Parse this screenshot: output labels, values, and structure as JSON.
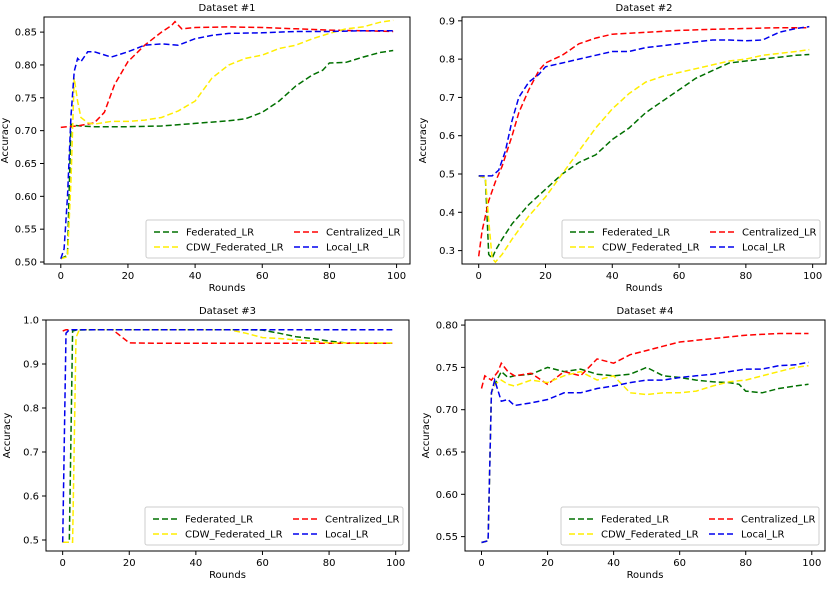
{
  "figure": {
    "series_names": [
      "Federated_LR",
      "Centralized_LR",
      "CDW_Federated_LR",
      "Local_LR"
    ],
    "series_colors": [
      "#007000",
      "#ff0000",
      "#ffee00",
      "#0000ee"
    ]
  },
  "chart_data": [
    {
      "type": "line",
      "title": "Dataset #1",
      "xlabel": "Rounds",
      "ylabel": "Accuracy",
      "xlim": [
        -5,
        104
      ],
      "ylim": [
        0.497,
        0.873
      ],
      "xticks": [
        0,
        20,
        40,
        60,
        80,
        100
      ],
      "yticks": [
        0.5,
        0.55,
        0.6,
        0.65,
        0.7,
        0.75,
        0.8,
        0.85
      ],
      "ytick_labels": [
        "0.50",
        "0.55",
        "0.60",
        "0.65",
        "0.70",
        "0.75",
        "0.80",
        "0.85"
      ],
      "legend_loc": "lower right",
      "series": [
        {
          "name": "Federated_LR",
          "x": [
            0,
            2,
            3,
            4,
            6,
            10,
            20,
            30,
            40,
            50,
            55,
            60,
            65,
            70,
            75,
            78,
            80,
            85,
            90,
            95,
            99
          ],
          "y": [
            0.505,
            0.51,
            0.71,
            0.708,
            0.707,
            0.706,
            0.706,
            0.707,
            0.711,
            0.715,
            0.718,
            0.728,
            0.745,
            0.768,
            0.785,
            0.792,
            0.803,
            0.804,
            0.812,
            0.819,
            0.822
          ]
        },
        {
          "name": "Centralized_LR",
          "x": [
            0,
            2,
            5,
            10,
            13,
            16,
            20,
            25,
            30,
            33,
            34,
            36,
            40,
            50,
            60,
            70,
            80,
            90,
            99
          ],
          "y": [
            0.705,
            0.706,
            0.707,
            0.712,
            0.728,
            0.77,
            0.805,
            0.83,
            0.85,
            0.86,
            0.866,
            0.855,
            0.857,
            0.858,
            0.857,
            0.855,
            0.853,
            0.852,
            0.851
          ]
        },
        {
          "name": "CDW_Federated_LR",
          "x": [
            0,
            2,
            3,
            4,
            5,
            6,
            8,
            10,
            15,
            20,
            25,
            30,
            35,
            40,
            45,
            50,
            55,
            60,
            65,
            70,
            75,
            80,
            85,
            90,
            95,
            99
          ],
          "y": [
            0.505,
            0.508,
            0.62,
            0.78,
            0.745,
            0.72,
            0.712,
            0.71,
            0.714,
            0.714,
            0.716,
            0.72,
            0.73,
            0.745,
            0.78,
            0.8,
            0.81,
            0.815,
            0.825,
            0.83,
            0.84,
            0.848,
            0.855,
            0.858,
            0.865,
            0.868
          ]
        },
        {
          "name": "Local_LR",
          "x": [
            0,
            1,
            2,
            3,
            4,
            5,
            6,
            8,
            10,
            15,
            20,
            25,
            30,
            35,
            40,
            45,
            50,
            60,
            70,
            80,
            90,
            99
          ],
          "y": [
            0.505,
            0.52,
            0.6,
            0.72,
            0.79,
            0.81,
            0.805,
            0.82,
            0.82,
            0.812,
            0.82,
            0.83,
            0.832,
            0.83,
            0.84,
            0.845,
            0.848,
            0.849,
            0.851,
            0.851,
            0.852,
            0.852
          ]
        }
      ]
    },
    {
      "type": "line",
      "title": "Dataset #2",
      "xlabel": "Rounds",
      "ylabel": "Accuracy",
      "xlim": [
        -5,
        104
      ],
      "ylim": [
        0.265,
        0.91
      ],
      "xticks": [
        0,
        20,
        40,
        60,
        80,
        100
      ],
      "yticks": [
        0.3,
        0.4,
        0.5,
        0.6,
        0.7,
        0.8,
        0.9
      ],
      "ytick_labels": [
        "0.3",
        "0.4",
        "0.5",
        "0.6",
        "0.7",
        "0.8",
        "0.9"
      ],
      "legend_loc": "lower right",
      "series": [
        {
          "name": "Federated_LR",
          "x": [
            0,
            2,
            3,
            4,
            5,
            7,
            10,
            15,
            20,
            25,
            30,
            35,
            40,
            45,
            50,
            55,
            60,
            65,
            70,
            75,
            80,
            85,
            90,
            95,
            99
          ],
          "y": [
            0.495,
            0.49,
            0.29,
            0.28,
            0.3,
            0.33,
            0.37,
            0.42,
            0.46,
            0.5,
            0.53,
            0.55,
            0.59,
            0.62,
            0.66,
            0.69,
            0.72,
            0.75,
            0.77,
            0.79,
            0.795,
            0.8,
            0.805,
            0.81,
            0.812
          ]
        },
        {
          "name": "Centralized_LR",
          "x": [
            0,
            1,
            3,
            5,
            7,
            10,
            12,
            15,
            18,
            20,
            25,
            30,
            35,
            40,
            50,
            60,
            70,
            80,
            90,
            99
          ],
          "y": [
            0.285,
            0.35,
            0.43,
            0.48,
            0.52,
            0.6,
            0.66,
            0.72,
            0.77,
            0.79,
            0.81,
            0.84,
            0.855,
            0.865,
            0.87,
            0.875,
            0.878,
            0.88,
            0.882,
            0.882
          ]
        },
        {
          "name": "CDW_Federated_LR",
          "x": [
            0,
            2,
            3,
            4,
            5,
            7,
            10,
            15,
            20,
            25,
            30,
            35,
            40,
            45,
            50,
            55,
            60,
            65,
            70,
            75,
            80,
            85,
            90,
            95,
            99
          ],
          "y": [
            0.495,
            0.49,
            0.38,
            0.28,
            0.27,
            0.29,
            0.33,
            0.39,
            0.44,
            0.5,
            0.56,
            0.62,
            0.67,
            0.71,
            0.74,
            0.755,
            0.765,
            0.775,
            0.785,
            0.795,
            0.8,
            0.81,
            0.815,
            0.82,
            0.825
          ]
        },
        {
          "name": "Local_LR",
          "x": [
            0,
            2,
            4,
            6,
            8,
            10,
            12,
            15,
            18,
            20,
            25,
            30,
            35,
            40,
            45,
            50,
            55,
            60,
            65,
            70,
            75,
            80,
            85,
            90,
            95,
            99
          ],
          "y": [
            0.495,
            0.495,
            0.495,
            0.51,
            0.56,
            0.64,
            0.7,
            0.74,
            0.76,
            0.78,
            0.79,
            0.8,
            0.81,
            0.82,
            0.82,
            0.83,
            0.835,
            0.84,
            0.845,
            0.85,
            0.85,
            0.848,
            0.85,
            0.87,
            0.88,
            0.885
          ]
        }
      ]
    },
    {
      "type": "line",
      "title": "Dataset #3",
      "xlabel": "Rounds",
      "ylabel": "Accuracy",
      "xlim": [
        -5,
        104
      ],
      "ylim": [
        0.475,
        1.0
      ],
      "xticks": [
        0,
        20,
        40,
        60,
        80,
        100
      ],
      "yticks": [
        0.5,
        0.6,
        0.7,
        0.8,
        0.9,
        1.0
      ],
      "ytick_labels": [
        "0.5",
        "0.6",
        "0.7",
        "0.8",
        "0.9",
        "1.0"
      ],
      "legend_loc": "lower right",
      "series": [
        {
          "name": "Federated_LR",
          "x": [
            0,
            2,
            3,
            4,
            10,
            20,
            40,
            55,
            60,
            65,
            70,
            75,
            80,
            85,
            90,
            99
          ],
          "y": [
            0.495,
            0.495,
            0.975,
            0.977,
            0.978,
            0.978,
            0.978,
            0.978,
            0.977,
            0.97,
            0.962,
            0.958,
            0.952,
            0.948,
            0.947,
            0.947
          ]
        },
        {
          "name": "Centralized_LR",
          "x": [
            0,
            1,
            5,
            15,
            18,
            20,
            30,
            40,
            50,
            60,
            70,
            80,
            90,
            99
          ],
          "y": [
            0.975,
            0.978,
            0.978,
            0.978,
            0.96,
            0.948,
            0.947,
            0.947,
            0.947,
            0.947,
            0.947,
            0.947,
            0.947,
            0.947
          ]
        },
        {
          "name": "CDW_Federated_LR",
          "x": [
            0,
            3,
            4,
            5,
            10,
            20,
            40,
            50,
            55,
            60,
            65,
            70,
            75,
            80,
            90,
            99
          ],
          "y": [
            0.495,
            0.495,
            0.96,
            0.978,
            0.978,
            0.978,
            0.978,
            0.978,
            0.97,
            0.96,
            0.958,
            0.955,
            0.952,
            0.948,
            0.948,
            0.948
          ]
        },
        {
          "name": "Local_LR",
          "x": [
            0,
            1,
            2,
            10,
            20,
            40,
            60,
            80,
            99
          ],
          "y": [
            0.495,
            0.97,
            0.978,
            0.978,
            0.978,
            0.978,
            0.978,
            0.978,
            0.978
          ]
        }
      ]
    },
    {
      "type": "line",
      "title": "Dataset #4",
      "xlabel": "Rounds",
      "ylabel": "Accuracy",
      "xlim": [
        -5,
        104
      ],
      "ylim": [
        0.533,
        0.806
      ],
      "xticks": [
        0,
        20,
        40,
        60,
        80,
        100
      ],
      "yticks": [
        0.55,
        0.6,
        0.65,
        0.7,
        0.75,
        0.8
      ],
      "ytick_labels": [
        "0.55",
        "0.60",
        "0.65",
        "0.70",
        "0.75",
        "0.80"
      ],
      "legend_loc": "lower right",
      "series": [
        {
          "name": "Federated_LR",
          "x": [
            0,
            2,
            3,
            4,
            6,
            8,
            10,
            15,
            20,
            25,
            30,
            35,
            40,
            45,
            50,
            55,
            60,
            65,
            70,
            75,
            78,
            80,
            85,
            90,
            95,
            99
          ],
          "y": [
            0.543,
            0.545,
            0.72,
            0.73,
            0.745,
            0.738,
            0.74,
            0.742,
            0.75,
            0.745,
            0.748,
            0.742,
            0.74,
            0.742,
            0.75,
            0.74,
            0.738,
            0.735,
            0.733,
            0.732,
            0.73,
            0.722,
            0.72,
            0.725,
            0.728,
            0.73
          ]
        },
        {
          "name": "Centralized_LR",
          "x": [
            0,
            1,
            3,
            5,
            6,
            8,
            10,
            15,
            20,
            25,
            30,
            35,
            40,
            45,
            50,
            55,
            60,
            70,
            80,
            90,
            99
          ],
          "y": [
            0.725,
            0.74,
            0.735,
            0.745,
            0.755,
            0.745,
            0.74,
            0.743,
            0.73,
            0.745,
            0.74,
            0.76,
            0.755,
            0.765,
            0.77,
            0.775,
            0.78,
            0.784,
            0.788,
            0.79,
            0.79
          ]
        },
        {
          "name": "CDW_Federated_LR",
          "x": [
            0,
            2,
            3,
            4,
            6,
            8,
            10,
            15,
            20,
            25,
            30,
            35,
            40,
            45,
            50,
            55,
            60,
            65,
            70,
            75,
            80,
            85,
            90,
            95,
            99
          ],
          "y": [
            0.543,
            0.545,
            0.72,
            0.73,
            0.735,
            0.73,
            0.728,
            0.735,
            0.732,
            0.74,
            0.745,
            0.735,
            0.74,
            0.72,
            0.718,
            0.72,
            0.72,
            0.722,
            0.728,
            0.733,
            0.735,
            0.74,
            0.745,
            0.75,
            0.752
          ]
        },
        {
          "name": "Local_LR",
          "x": [
            0,
            2,
            3,
            4,
            6,
            8,
            10,
            15,
            20,
            25,
            30,
            35,
            40,
            45,
            50,
            55,
            60,
            65,
            70,
            75,
            80,
            85,
            90,
            95,
            99
          ],
          "y": [
            0.543,
            0.545,
            0.72,
            0.735,
            0.71,
            0.712,
            0.705,
            0.708,
            0.712,
            0.72,
            0.72,
            0.725,
            0.728,
            0.732,
            0.735,
            0.735,
            0.738,
            0.74,
            0.742,
            0.745,
            0.748,
            0.748,
            0.752,
            0.753,
            0.756
          ]
        }
      ]
    }
  ]
}
